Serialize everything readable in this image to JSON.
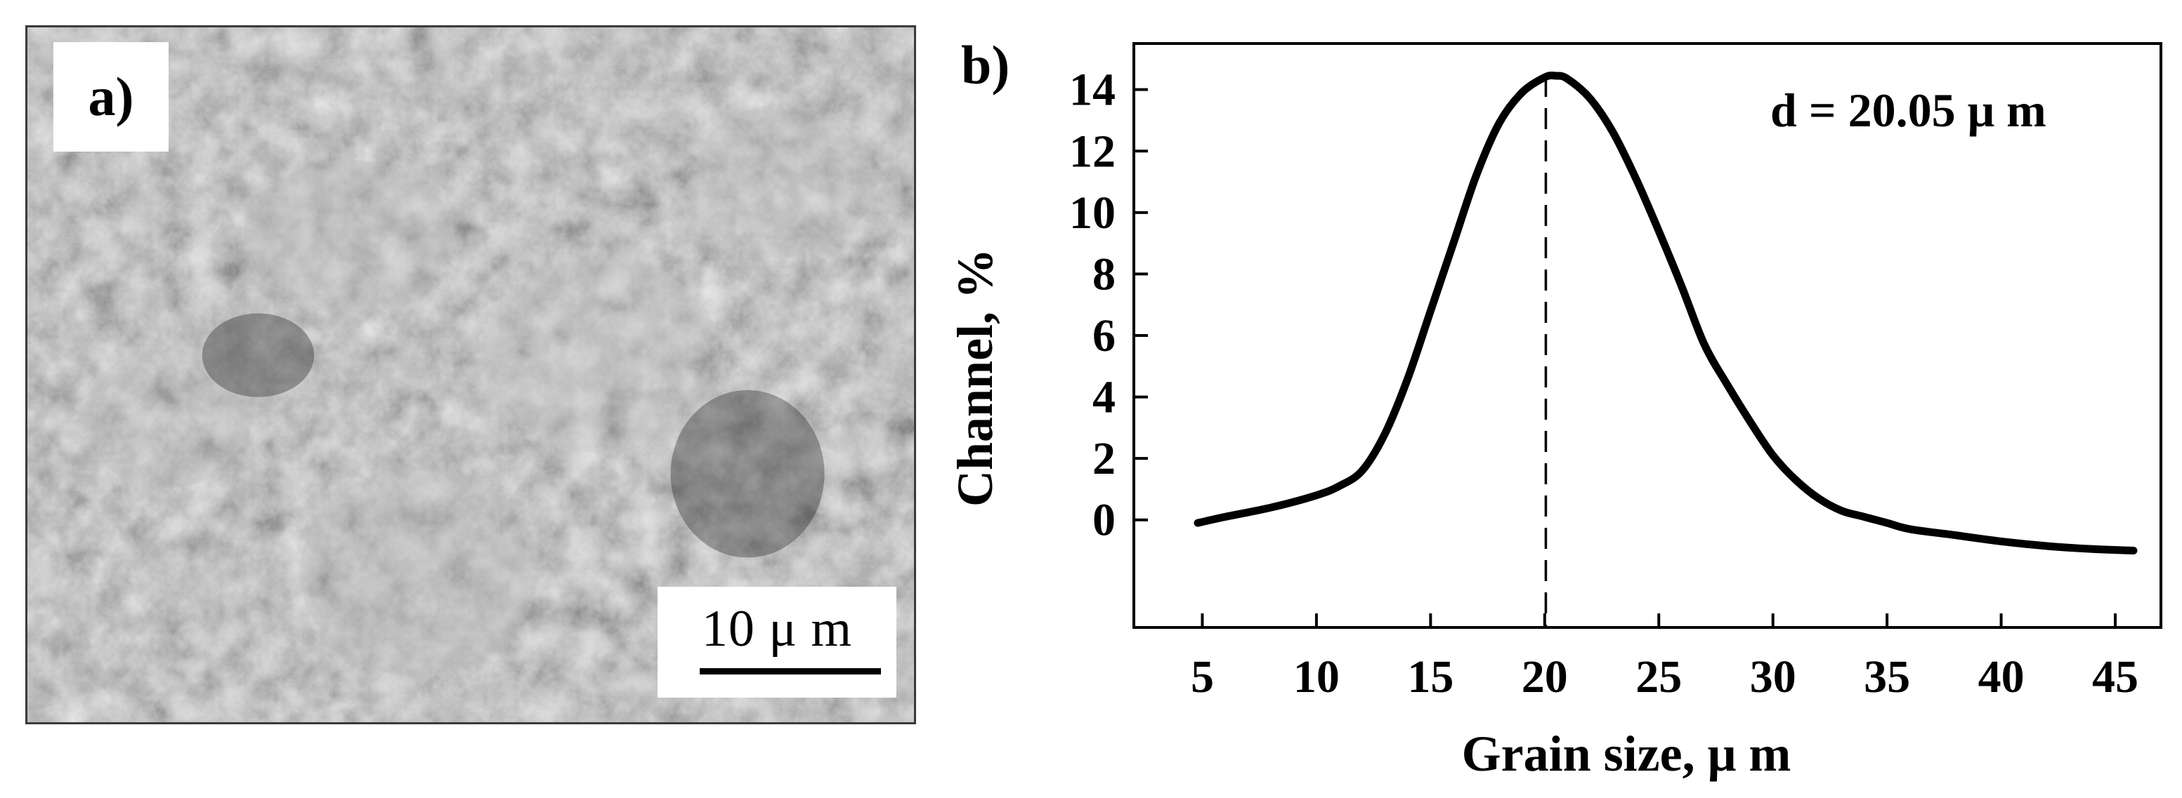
{
  "panel_a": {
    "label": "a)",
    "scale_bar_label": "10 μ m",
    "image_description_name": "sem-micrograph"
  },
  "panel_b": {
    "label": "b)"
  },
  "chart_data": {
    "type": "line",
    "title": "",
    "xlabel": "Grain size, μ m",
    "ylabel": "Channel, %",
    "xlim": [
      2,
      47
    ],
    "ylim": [
      -3.5,
      15.5
    ],
    "xticks": [
      5,
      10,
      15,
      20,
      25,
      30,
      35,
      40,
      45
    ],
    "xtick_labels": [
      "5",
      "10",
      "15",
      "20",
      "25",
      "30",
      "35",
      "40",
      "45"
    ],
    "yticks": [
      0,
      2,
      4,
      6,
      8,
      10,
      12,
      14
    ],
    "ytick_labels": [
      "0",
      "2",
      "4",
      "6",
      "8",
      "10",
      "12",
      "14"
    ],
    "series": [
      {
        "name": "grain size distribution",
        "x": [
          4.8,
          6,
          8,
          10,
          11,
          12,
          13,
          14,
          15,
          16,
          17,
          18,
          19,
          20,
          20.5,
          21,
          22,
          23,
          24,
          25,
          26,
          27,
          28,
          29,
          30,
          31,
          32,
          33,
          34,
          35,
          36,
          38,
          40,
          42,
          44,
          45.8
        ],
        "y": [
          -0.1,
          0.1,
          0.4,
          0.8,
          1.1,
          1.6,
          2.8,
          4.6,
          6.8,
          9.0,
          11.2,
          12.9,
          13.9,
          14.4,
          14.45,
          14.35,
          13.7,
          12.6,
          11.1,
          9.4,
          7.6,
          5.7,
          4.4,
          3.2,
          2.1,
          1.3,
          0.7,
          0.3,
          0.1,
          -0.1,
          -0.3,
          -0.5,
          -0.7,
          -0.85,
          -0.95,
          -1.0
        ]
      }
    ],
    "reference_line": {
      "x": 20.05,
      "style": "dashed"
    },
    "annotation": "d = 20.05 μ m",
    "grid": false,
    "legend": "none"
  }
}
